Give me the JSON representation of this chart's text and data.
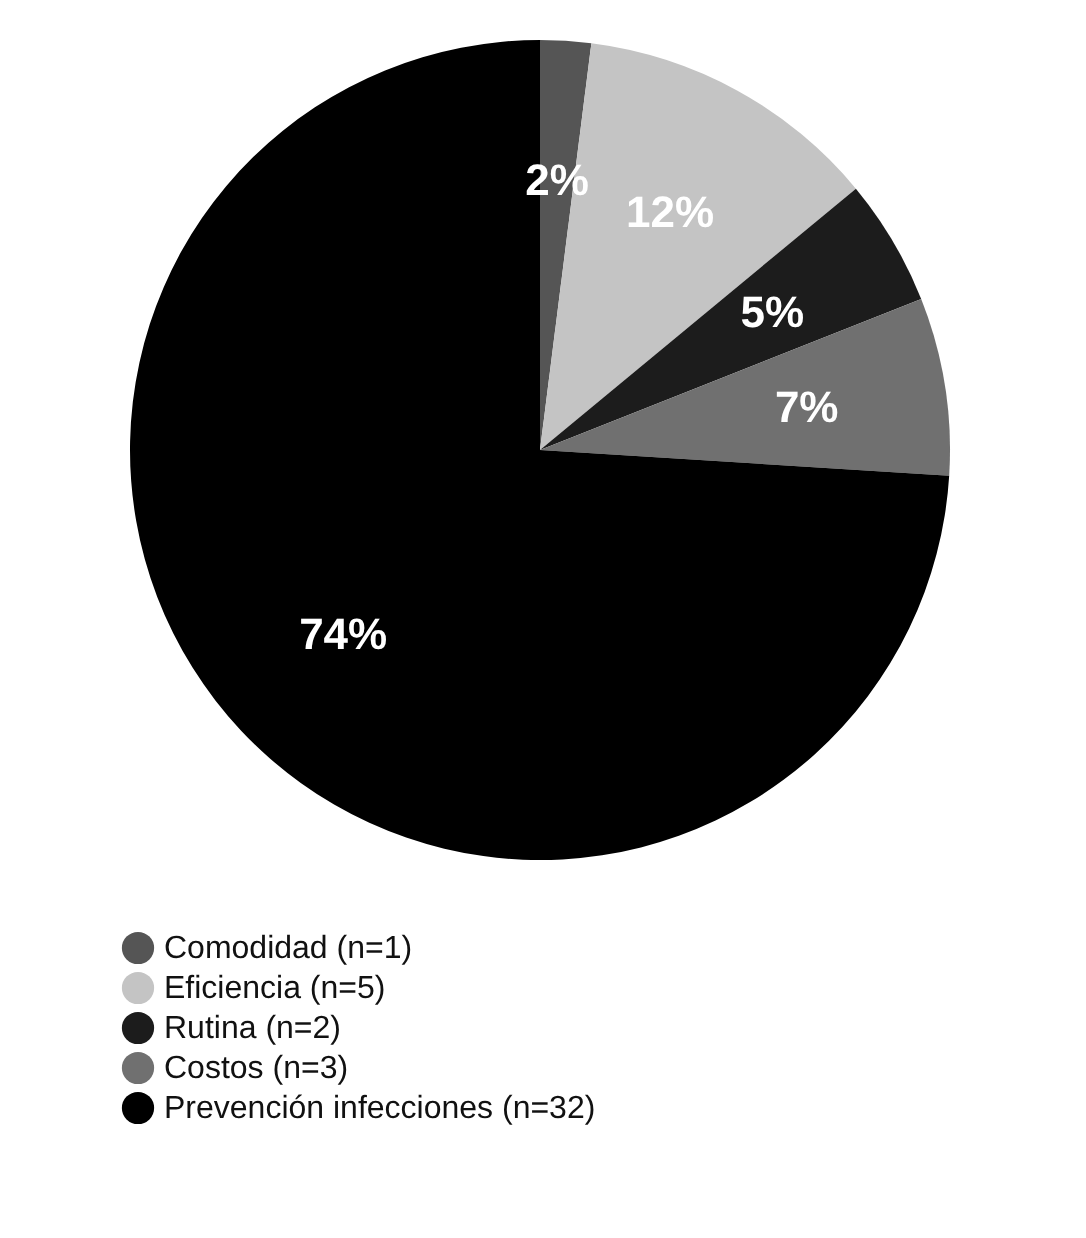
{
  "chart_data": {
    "type": "pie",
    "categories": [
      "Comodidad (n=1)",
      "Eficiencia (n=5)",
      "Rutina (n=2)",
      "Costos (n=3)",
      "Prevención infecciones (n=32)"
    ],
    "values": [
      2,
      12,
      5,
      7,
      74
    ],
    "colors": [
      "#555555",
      "#c4c4c4",
      "#1c1c1c",
      "#707070",
      "#000000"
    ],
    "value_labels": [
      "2%",
      "12%",
      "5%",
      "7%",
      "74%"
    ],
    "legend": "bottom"
  }
}
